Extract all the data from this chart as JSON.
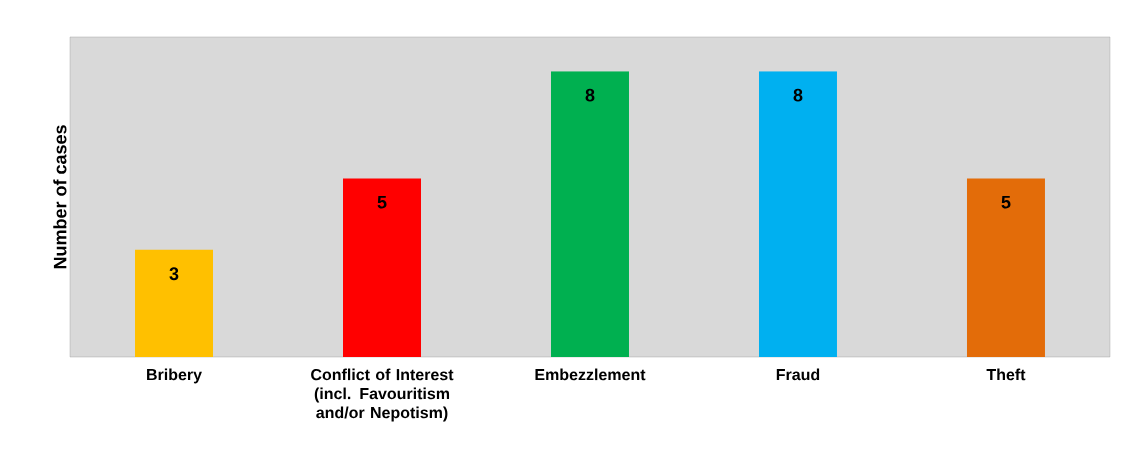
{
  "chart_data": {
    "type": "bar",
    "ylabel": "Number of cases",
    "categories": [
      "Bribery",
      "Conflict of Interest (incl. Favouritism and/or Nepotism)",
      "Embezzlement",
      "Fraud",
      "Theft"
    ],
    "values": [
      3,
      5,
      8,
      8,
      5
    ],
    "colors": [
      "#ffc000",
      "#ff0000",
      "#00b050",
      "#00b0f0",
      "#e36c09"
    ],
    "data_labels": true
  }
}
